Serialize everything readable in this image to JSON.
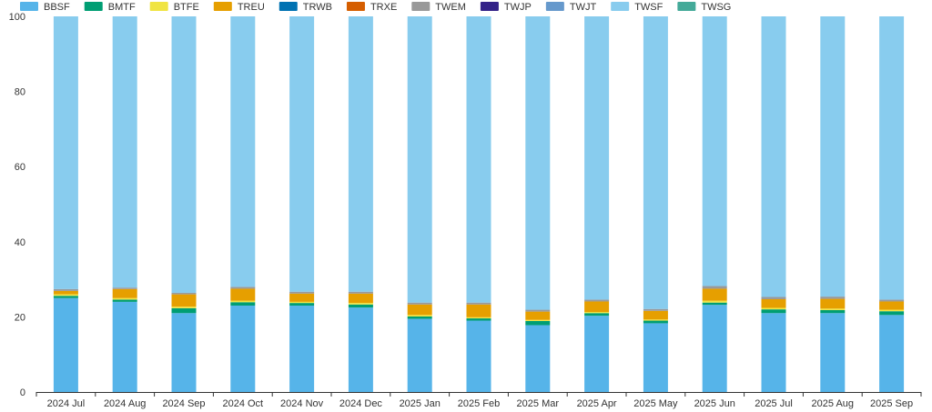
{
  "chart_data": {
    "type": "bar",
    "stacked": true,
    "legend": [
      {
        "name": "BBSF",
        "color": "#56B4E9"
      },
      {
        "name": "BMTF",
        "color": "#009E73"
      },
      {
        "name": "BTFE",
        "color": "#F0E442"
      },
      {
        "name": "TREU",
        "color": "#E69F00"
      },
      {
        "name": "TRWB",
        "color": "#0072B2"
      },
      {
        "name": "TRXE",
        "color": "#D55E00"
      },
      {
        "name": "TWEM",
        "color": "#999999"
      },
      {
        "name": "TWJP",
        "color": "#332288"
      },
      {
        "name": "TWJT",
        "color": "#6699CC"
      },
      {
        "name": "TWSF",
        "color": "#88CCEE"
      },
      {
        "name": "TWSG",
        "color": "#44AA99"
      }
    ],
    "categories": [
      "2024 Jul",
      "2024 Aug",
      "2024 Sep",
      "2024 Oct",
      "2024 Nov",
      "2024 Dec",
      "2025 Jan",
      "2025 Feb",
      "2025 Mar",
      "2025 Apr",
      "2025 May",
      "2025 Jun",
      "2025 Jul",
      "2025 Aug",
      "2025 Sep"
    ],
    "series": [
      {
        "name": "BBSF",
        "values": [
          25,
          24,
          21,
          23,
          23,
          22.5,
          19.5,
          19,
          17.8,
          20.3,
          18.3,
          23.2,
          21,
          21,
          20.5
        ]
      },
      {
        "name": "BMTF",
        "values": [
          0.6,
          0.6,
          1.3,
          0.9,
          0.7,
          0.8,
          0.6,
          0.6,
          1.1,
          0.7,
          0.7,
          0.6,
          1,
          0.8,
          1
        ]
      },
      {
        "name": "BTFE",
        "values": [
          0.4,
          0.4,
          0.4,
          0.4,
          0.3,
          0.4,
          0.4,
          0.3,
          0.3,
          0.3,
          0.3,
          0.5,
          0.4,
          0.4,
          0.4
        ]
      },
      {
        "name": "TREU",
        "values": [
          0.9,
          2.4,
          3.3,
          3.2,
          2.2,
          2.5,
          2.8,
          3.4,
          2.2,
          2.8,
          2.3,
          3.2,
          2.3,
          2.6,
          2.2
        ]
      },
      {
        "name": "TRWB",
        "values": [
          0,
          0,
          0,
          0,
          0,
          0,
          0,
          0,
          0,
          0,
          0,
          0,
          0,
          0,
          0
        ]
      },
      {
        "name": "TRXE",
        "values": [
          0,
          0,
          0,
          0,
          0,
          0,
          0,
          0,
          0,
          0,
          0,
          0,
          0,
          0,
          0
        ]
      },
      {
        "name": "TWEM",
        "values": [
          0.5,
          0.4,
          0.4,
          0.5,
          0.5,
          0.5,
          0.5,
          0.5,
          0.5,
          0.5,
          0.5,
          0.7,
          0.6,
          0.6,
          0.5
        ]
      },
      {
        "name": "TWJP",
        "values": [
          0,
          0,
          0,
          0,
          0,
          0,
          0,
          0,
          0,
          0,
          0,
          0,
          0,
          0,
          0
        ]
      },
      {
        "name": "TWJT",
        "values": [
          0,
          0,
          0,
          0,
          0,
          0,
          0,
          0,
          0,
          0,
          0,
          0,
          0,
          0,
          0
        ]
      },
      {
        "name": "TWSF",
        "values": [
          72.6,
          72.2,
          73.6,
          72,
          73.3,
          73.3,
          76.2,
          76.2,
          78.1,
          75.4,
          77.9,
          71.8,
          74.7,
          74.6,
          75.4
        ]
      },
      {
        "name": "TWSG",
        "values": [
          0,
          0,
          0,
          0,
          0,
          0,
          0,
          0,
          0,
          0,
          0,
          0,
          0,
          0,
          0
        ]
      }
    ],
    "yticks": [
      "0",
      "20",
      "40",
      "60",
      "80",
      "100"
    ],
    "ylim": [
      0,
      100
    ],
    "grid": false,
    "legend_position": "top-left"
  }
}
